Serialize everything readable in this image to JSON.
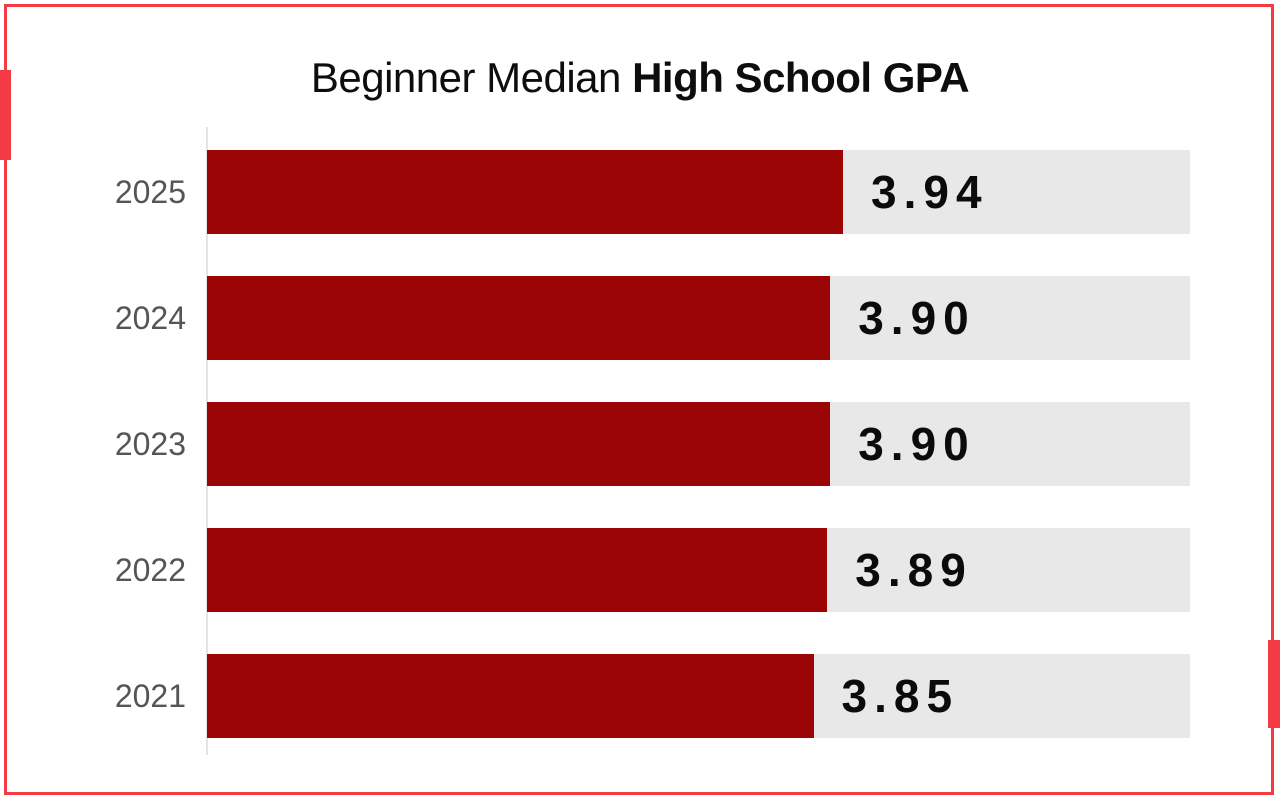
{
  "title": {
    "regular": "Beginner Median ",
    "bold": "High School GPA"
  },
  "chart_data": {
    "type": "bar",
    "orientation": "horizontal",
    "title": "Beginner Median High School GPA",
    "categories": [
      "2025",
      "2024",
      "2023",
      "2022",
      "2021"
    ],
    "values": [
      3.94,
      3.9,
      3.9,
      3.89,
      3.85
    ],
    "value_labels": [
      "3.94",
      "3.90",
      "3.90",
      "3.89",
      "3.85"
    ],
    "bar_fill_pct": [
      64.7,
      63.4,
      63.4,
      63.1,
      61.7
    ],
    "x_domain_est": [
      2.07,
      4.97
    ],
    "xlabel": "",
    "ylabel": "",
    "grid": "off",
    "legend": "none",
    "bar_color": "#9B0505",
    "track_color": "#E8E8E8",
    "frame_color": "#F43B43",
    "axis_line_color": "#E4E4E4",
    "category_label_color": "#555555",
    "value_label_color": "#0B0B0B"
  }
}
